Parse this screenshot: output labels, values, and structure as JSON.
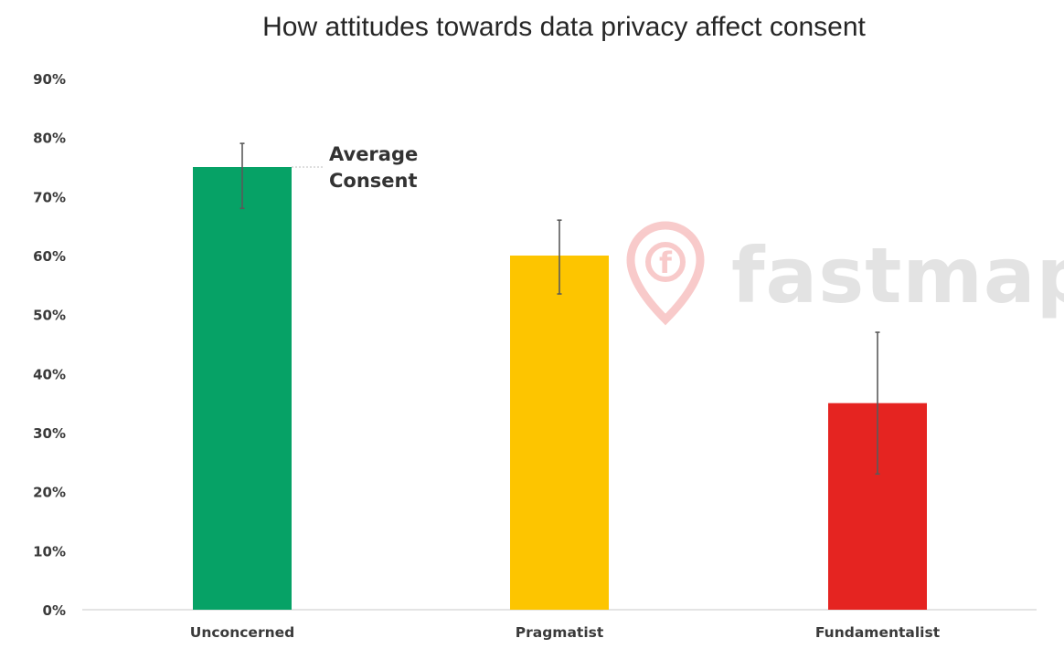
{
  "chart_data": {
    "type": "bar",
    "title": "How attitudes towards data privacy affect consent",
    "categories": [
      "Unconcerned",
      "Pragmatist",
      "Fundamentalist"
    ],
    "values": [
      75,
      60,
      35
    ],
    "error_low": [
      68,
      53.5,
      23
    ],
    "error_high": [
      79,
      66,
      47
    ],
    "colors": [
      "#06a266",
      "#fdc500",
      "#e52421"
    ],
    "ylim": [
      0,
      90
    ],
    "yticks": [
      "0%",
      "10%",
      "20%",
      "30%",
      "40%",
      "50%",
      "60%",
      "70%",
      "80%",
      "90%"
    ],
    "xlabel": "",
    "ylabel": "",
    "grid": false,
    "annotation": {
      "lines": [
        "Average",
        "Consent"
      ],
      "target_category": "Unconcerned"
    }
  },
  "watermark": {
    "text": "fastmap",
    "logo_letter": "f"
  }
}
